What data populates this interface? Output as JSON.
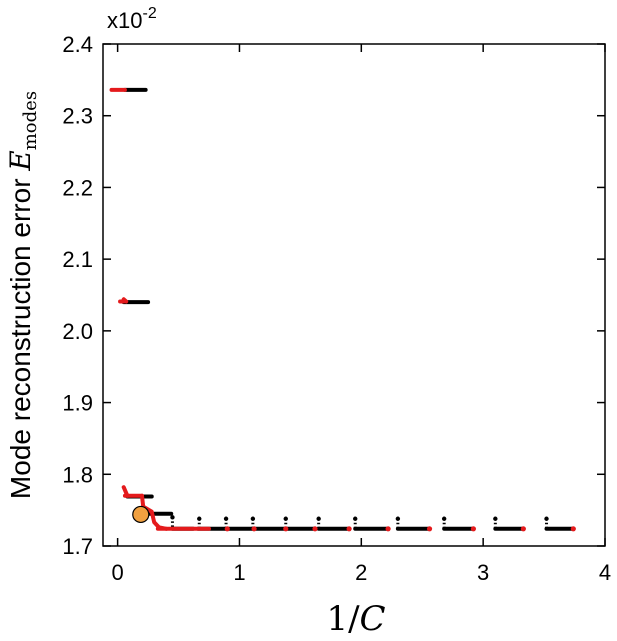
{
  "chart_data": {
    "type": "scatter",
    "title": "",
    "multiplier": {
      "base": "x10",
      "exponent": "-2"
    },
    "xlabel": {
      "main": "1/",
      "italic": "C"
    },
    "ylabel": {
      "text": "Mode reconstruction error ",
      "symbol": "E",
      "subscript": "modes"
    },
    "xlim": [
      -0.12,
      4.0
    ],
    "ylim": [
      1.7,
      2.4
    ],
    "xticks": [
      {
        "value": 0,
        "label": "0"
      },
      {
        "value": 1,
        "label": "1"
      },
      {
        "value": 2,
        "label": "2"
      },
      {
        "value": 3,
        "label": "3"
      },
      {
        "value": 4,
        "label": "4"
      }
    ],
    "yticks": [
      {
        "value": 1.7,
        "label": "1.7"
      },
      {
        "value": 1.8,
        "label": "1.8"
      },
      {
        "value": 1.9,
        "label": "1.9"
      },
      {
        "value": 2.0,
        "label": "2.0"
      },
      {
        "value": 2.1,
        "label": "2.1"
      },
      {
        "value": 2.2,
        "label": "2.2"
      },
      {
        "value": 2.3,
        "label": "2.3"
      },
      {
        "value": 2.4,
        "label": "2.4"
      }
    ],
    "grid": false,
    "colors": {
      "black": "#000000",
      "red": "#e41a1c",
      "highlight": "#f0a040"
    },
    "series": [
      {
        "color": "black",
        "segments": [
          {
            "x0": 0.06,
            "x1": 0.23,
            "y": 2.336
          },
          {
            "x0": 0.05,
            "x1": 0.25,
            "y": 2.04
          },
          {
            "x0": 0.08,
            "x1": 0.28,
            "y": 1.769
          },
          {
            "x0": 0.18,
            "x1": 0.44,
            "y": 1.745
          },
          {
            "x0": 0.45,
            "x1": 0.62,
            "y": 1.724
          },
          {
            "x0": 0.66,
            "x1": 0.9,
            "y": 1.724
          },
          {
            "x0": 0.89,
            "x1": 1.12,
            "y": 1.724
          },
          {
            "x0": 1.11,
            "x1": 1.38,
            "y": 1.724
          },
          {
            "x0": 1.38,
            "x1": 1.62,
            "y": 1.724
          },
          {
            "x0": 1.65,
            "x1": 1.9,
            "y": 1.724
          },
          {
            "x0": 1.95,
            "x1": 2.22,
            "y": 1.724
          },
          {
            "x0": 2.3,
            "x1": 2.56,
            "y": 1.724
          },
          {
            "x0": 2.68,
            "x1": 2.92,
            "y": 1.724
          },
          {
            "x0": 3.1,
            "x1": 3.33,
            "y": 1.724
          },
          {
            "x0": 3.52,
            "x1": 3.74,
            "y": 1.724
          }
        ]
      },
      {
        "color": "red",
        "segments": [
          {
            "x0": -0.05,
            "x1": 0.06,
            "y": 2.336
          },
          {
            "x0": 0.02,
            "x1": 0.05,
            "y": 2.041
          },
          {
            "x0": 0.06,
            "x1": 0.2,
            "y": 1.77
          },
          {
            "x0": 0.33,
            "x1": 0.75,
            "y": 1.724
          },
          {
            "x0": 0.9,
            "x1": 0.9,
            "y": 1.724
          },
          {
            "x0": 1.12,
            "x1": 1.12,
            "y": 1.724
          },
          {
            "x0": 1.38,
            "x1": 1.38,
            "y": 1.724
          },
          {
            "x0": 1.62,
            "x1": 1.62,
            "y": 1.724
          },
          {
            "x0": 1.9,
            "x1": 1.9,
            "y": 1.724
          },
          {
            "x0": 2.22,
            "x1": 2.22,
            "y": 1.724
          },
          {
            "x0": 2.56,
            "x1": 2.56,
            "y": 1.724
          },
          {
            "x0": 2.92,
            "x1": 2.92,
            "y": 1.724
          },
          {
            "x0": 3.33,
            "x1": 3.33,
            "y": 1.724
          },
          {
            "x0": 3.74,
            "x1": 3.74,
            "y": 1.724
          }
        ]
      }
    ],
    "red_curves": [
      [
        [
          0.05,
          1.782
        ],
        [
          0.08,
          1.77
        ]
      ],
      [
        [
          0.05,
          2.044
        ],
        [
          0.07,
          2.041
        ]
      ],
      [
        [
          0.2,
          1.77
        ],
        [
          0.21,
          1.755
        ],
        [
          0.28,
          1.748
        ],
        [
          0.3,
          1.733
        ],
        [
          0.34,
          1.726
        ],
        [
          0.4,
          1.724
        ]
      ]
    ],
    "black_drops": [
      {
        "x": 0.45,
        "y_top": 1.74
      },
      {
        "x": 0.67,
        "y_top": 1.738
      },
      {
        "x": 0.89,
        "y_top": 1.738
      },
      {
        "x": 1.11,
        "y_top": 1.738
      },
      {
        "x": 1.38,
        "y_top": 1.738
      },
      {
        "x": 1.65,
        "y_top": 1.738
      },
      {
        "x": 1.95,
        "y_top": 1.738
      },
      {
        "x": 2.3,
        "y_top": 1.738
      },
      {
        "x": 2.68,
        "y_top": 1.738
      },
      {
        "x": 3.1,
        "y_top": 1.738
      },
      {
        "x": 3.52,
        "y_top": 1.738
      }
    ],
    "highlight_point": {
      "x": 0.19,
      "y": 1.744
    }
  }
}
